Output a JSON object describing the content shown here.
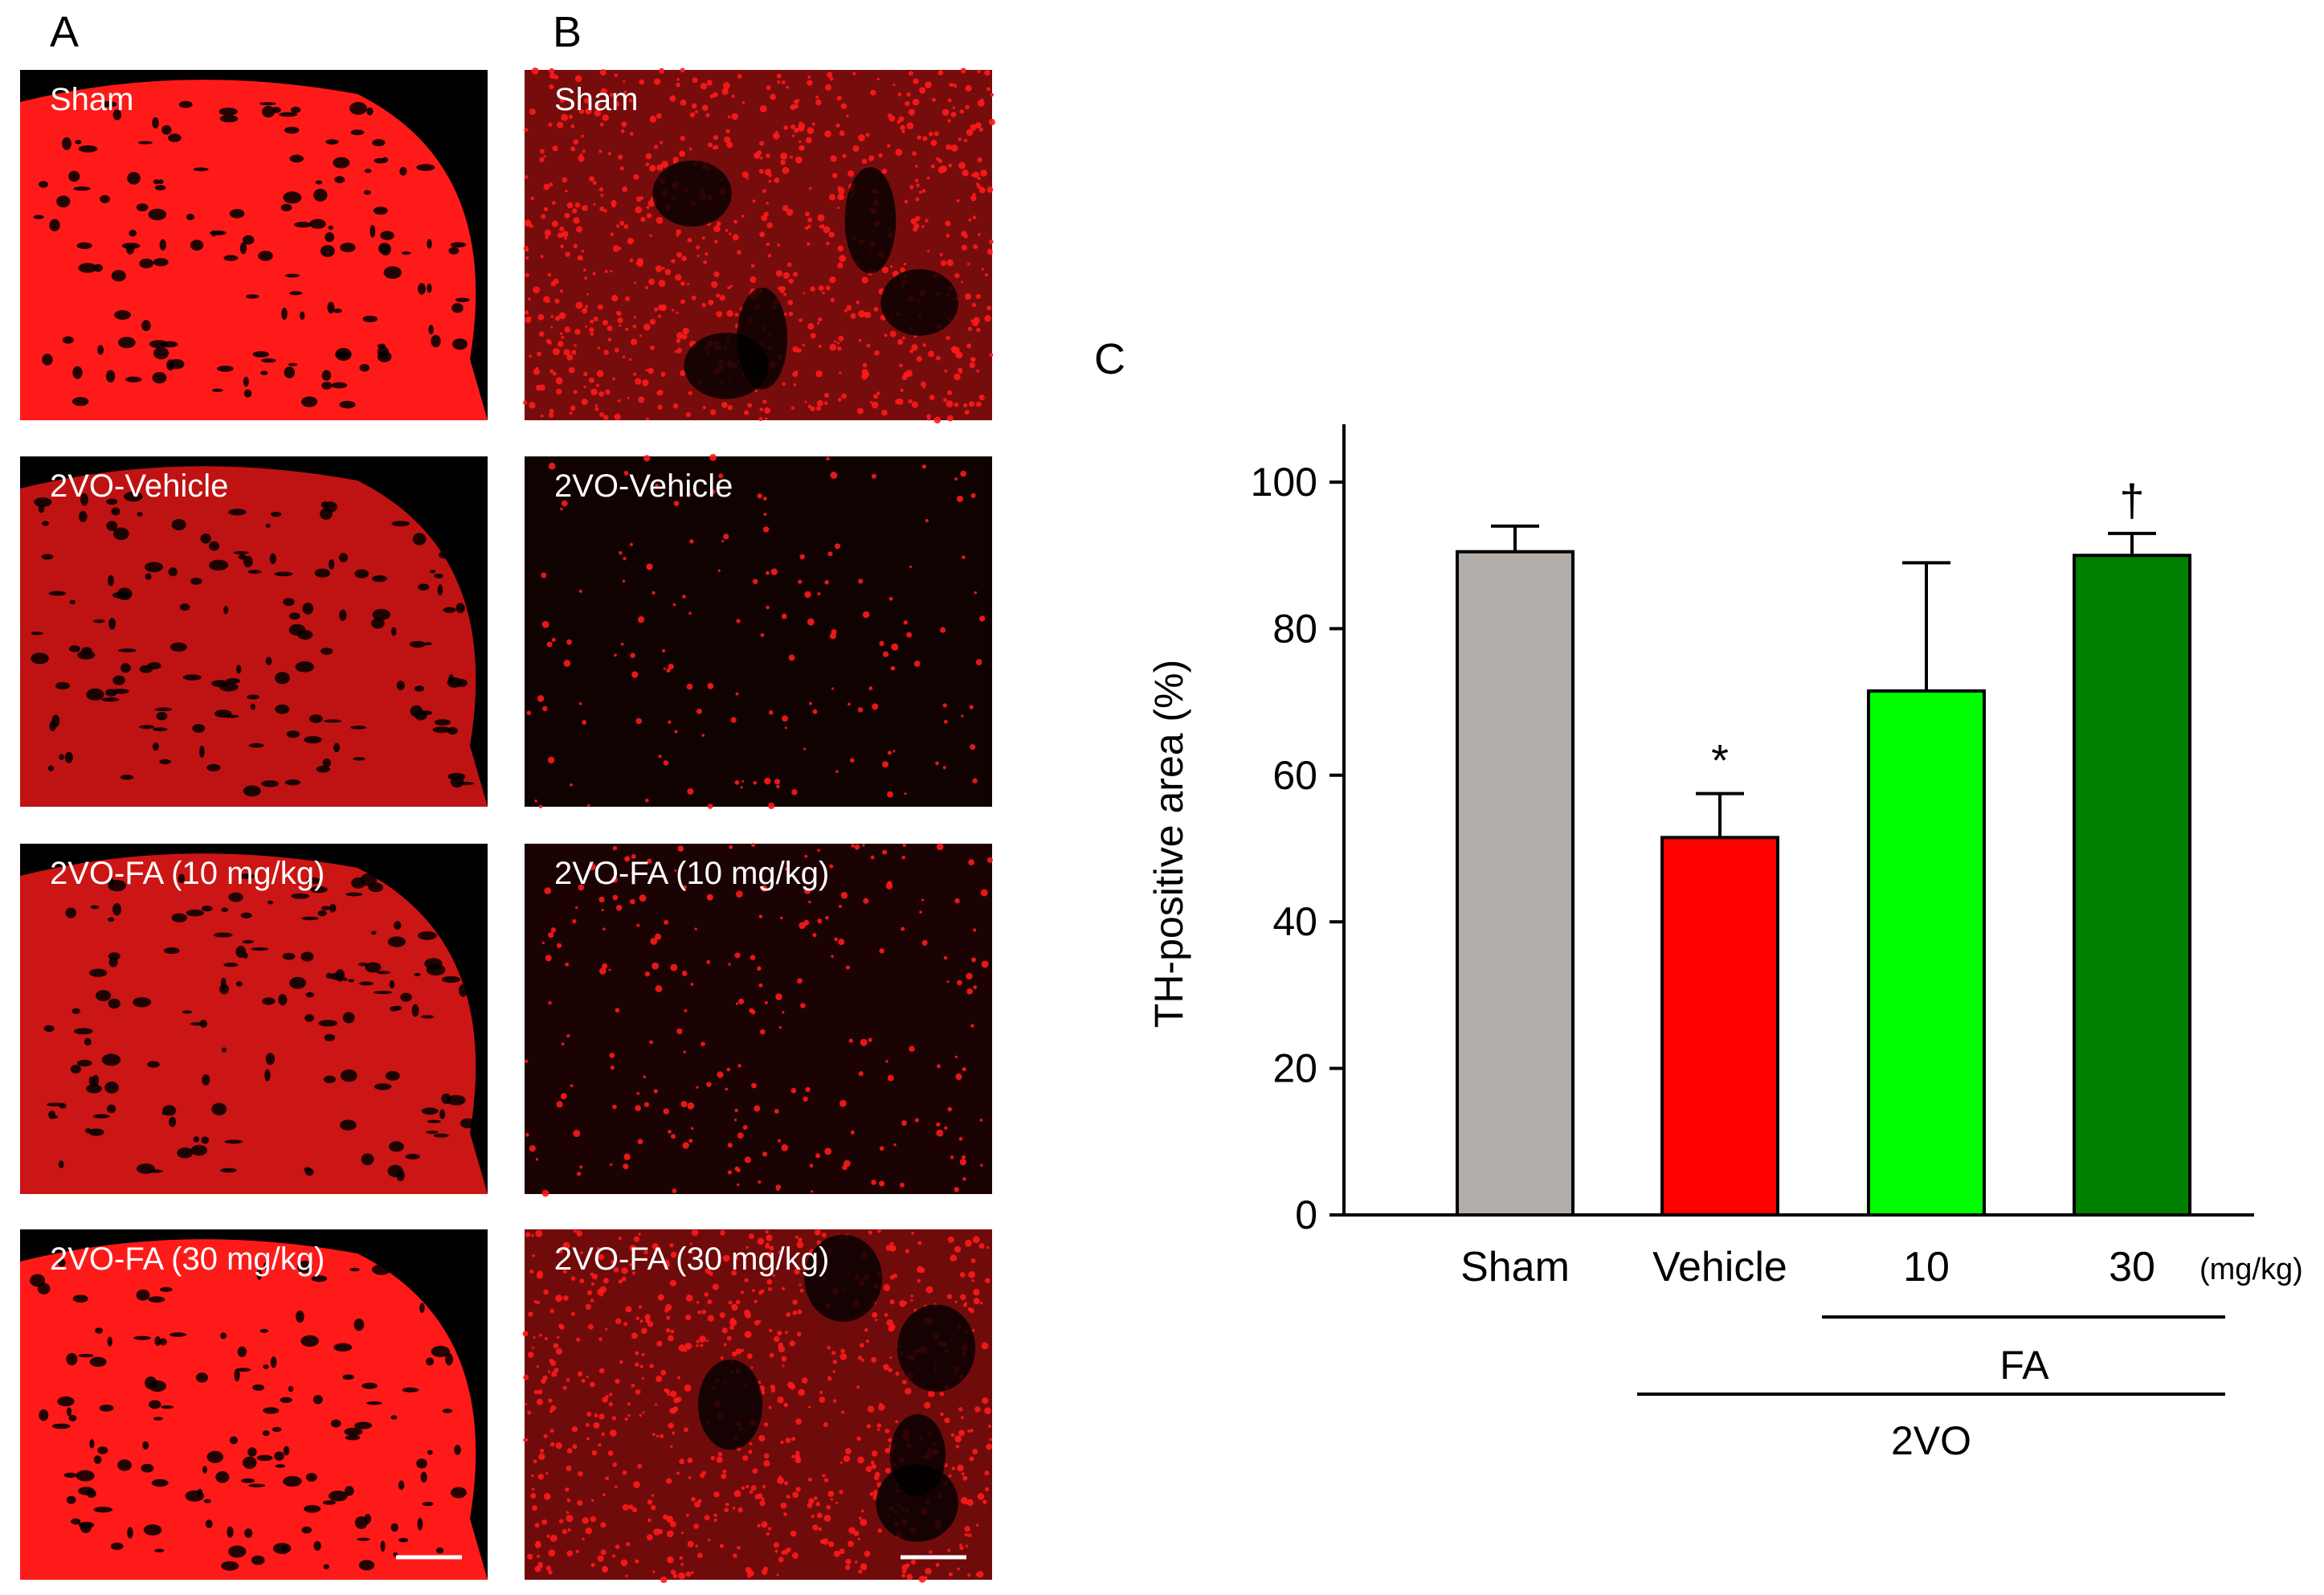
{
  "panels": {
    "a_letter": "A",
    "b_letter": "B",
    "c_letter": "C"
  },
  "micrographs": {
    "labels": [
      "Sham",
      "2VO-Vehicle",
      "2VO-FA (10 mg/kg)",
      "2VO-FA (30 mg/kg)"
    ],
    "stain_color": "#ff1a1a",
    "background_color": "#000000",
    "column_a_intensity": [
      1.0,
      0.75,
      0.8,
      1.0
    ],
    "column_b_intensity": [
      0.85,
      0.12,
      0.2,
      0.8
    ],
    "scale_bar_color": "#ffffff"
  },
  "chart_data": {
    "type": "bar",
    "ylabel": "TH-positive area (%)",
    "ylim": [
      0,
      100
    ],
    "yticks": [
      0,
      20,
      40,
      60,
      80,
      100
    ],
    "categories": [
      "Sham",
      "Vehicle",
      "10",
      "30"
    ],
    "x_unit": "(mg/kg)",
    "values": [
      90.5,
      51.5,
      71.5,
      90
    ],
    "errors": [
      3.5,
      6,
      17.5,
      3
    ],
    "colors": [
      "#b3adaa",
      "#ff0000",
      "#00ff00",
      "#008000"
    ],
    "annotations": [
      "",
      "*",
      "",
      "†"
    ],
    "group_labels": [
      "FA",
      "2VO"
    ]
  }
}
